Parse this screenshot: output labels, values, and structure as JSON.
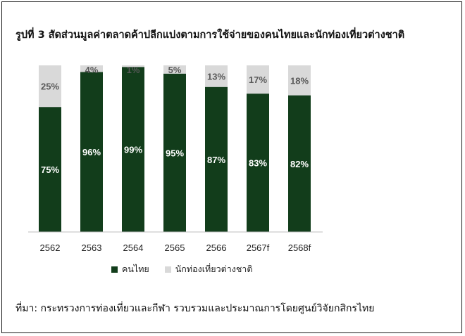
{
  "title": "รูปที่ 3 สัดส่วนมูลค่าตลาดค้าปลีกแบ่งตามการใช้จ่ายของคนไทยและนักท่องเที่ยวต่างชาติ",
  "source": "ที่มา: กระทรวงการท่องเที่ยวและกีฬา รวบรวมและประมาณการโดยศูนย์วิจัยกสิกรไทย",
  "colors": {
    "thai": "#123d1b",
    "foreign": "#d9d9d9",
    "axis": "#bfbfbf"
  },
  "chart_data": {
    "type": "bar",
    "stacked": true,
    "categories": [
      "2562",
      "2563",
      "2564",
      "2565",
      "2566",
      "2567f",
      "2568f"
    ],
    "series": [
      {
        "name": "คนไทย",
        "values": [
          75,
          96,
          99,
          95,
          87,
          83,
          82
        ],
        "labels": [
          "75%",
          "96%",
          "99%",
          "95%",
          "87%",
          "83%",
          "82%"
        ]
      },
      {
        "name": "นักท่องเที่ยวต่างชาติ",
        "values": [
          25,
          4,
          1,
          5,
          13,
          17,
          18
        ],
        "labels": [
          "25%",
          "4%",
          "1%",
          "5%",
          "13%",
          "17%",
          "18%"
        ]
      }
    ],
    "ylim": [
      0,
      100
    ],
    "legend_position": "bottom-left",
    "grid": false
  }
}
